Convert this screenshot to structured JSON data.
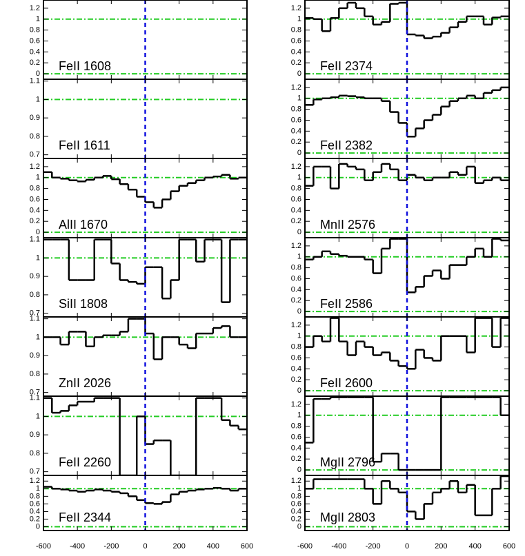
{
  "chart_data": [
    {
      "type": "step",
      "label": "FeII 1608",
      "xlim": [
        -600,
        600
      ],
      "xticks": [
        -600,
        -400,
        -200,
        0,
        200,
        400,
        600
      ],
      "ylim": [
        -0.1,
        1.35
      ],
      "yticks": [
        0.0,
        0.2,
        0.4,
        0.6,
        0.8,
        1.0,
        1.2
      ],
      "hlines": [
        0,
        1
      ],
      "vline": 0
    },
    {
      "type": "step",
      "label": "FeII 1611",
      "xlim": [
        -600,
        600
      ],
      "xticks": [
        -600,
        -400,
        -200,
        0,
        200,
        400,
        600
      ],
      "ylim": [
        0.68,
        1.11
      ],
      "yticks": [
        0.7,
        0.8,
        0.9,
        1.0,
        1.1
      ],
      "hlines": [
        1
      ],
      "vline": 0
    },
    {
      "type": "step",
      "label": "AlII 1670",
      "xlim": [
        -600,
        600
      ],
      "xticks": [
        -600,
        -400,
        -200,
        0,
        200,
        400,
        600
      ],
      "ylim": [
        -0.1,
        1.35
      ],
      "yticks": [
        0.0,
        0.2,
        0.4,
        0.6,
        0.8,
        1.0,
        1.2
      ],
      "hlines": [
        0,
        1
      ],
      "vline": 0,
      "x": [
        -575,
        -525,
        -475,
        -425,
        -375,
        -325,
        -275,
        -225,
        -175,
        -125,
        -75,
        -25,
        25,
        75,
        125,
        175,
        225,
        275,
        325,
        375,
        425,
        475,
        525,
        575
      ],
      "values": [
        1.1,
        1.0,
        0.98,
        0.95,
        0.93,
        0.96,
        1.0,
        1.03,
        0.97,
        0.88,
        0.78,
        0.65,
        0.55,
        0.45,
        0.6,
        0.75,
        0.85,
        0.9,
        0.95,
        1.0,
        1.02,
        1.05,
        0.98,
        1.0
      ]
    },
    {
      "type": "step",
      "label": "SiII 1808",
      "xlim": [
        -600,
        600
      ],
      "xticks": [
        -600,
        -400,
        -200,
        0,
        200,
        400,
        600
      ],
      "ylim": [
        0.68,
        1.11
      ],
      "yticks": [
        0.7,
        0.8,
        0.9,
        1.0,
        1.1
      ],
      "hlines": [
        1
      ],
      "vline": 0,
      "x": [
        -575,
        -525,
        -475,
        -425,
        -375,
        -325,
        -275,
        -225,
        -175,
        -125,
        -75,
        -25,
        25,
        75,
        125,
        175,
        225,
        275,
        325,
        375,
        425,
        475,
        525,
        575
      ],
      "values": [
        1.1,
        1.1,
        1.1,
        0.88,
        0.88,
        0.88,
        1.1,
        1.1,
        0.97,
        0.88,
        0.87,
        0.86,
        0.95,
        0.95,
        0.78,
        0.88,
        1.1,
        1.1,
        0.98,
        1.1,
        1.1,
        0.76,
        1.1,
        1.1
      ]
    },
    {
      "type": "step",
      "label": "ZnII 2026",
      "xlim": [
        -600,
        600
      ],
      "xticks": [
        -600,
        -400,
        -200,
        0,
        200,
        400,
        600
      ],
      "ylim": [
        0.68,
        1.11
      ],
      "yticks": [
        0.7,
        0.8,
        0.9,
        1.0,
        1.1
      ],
      "hlines": [
        1
      ],
      "vline": 0,
      "x": [
        -575,
        -525,
        -475,
        -425,
        -375,
        -325,
        -275,
        -225,
        -175,
        -125,
        -75,
        -25,
        25,
        75,
        125,
        175,
        225,
        275,
        325,
        375,
        425,
        475,
        525,
        575
      ],
      "values": [
        1.0,
        1.0,
        0.96,
        1.03,
        1.03,
        0.95,
        1.0,
        1.01,
        1.01,
        1.03,
        1.1,
        1.1,
        1.02,
        0.88,
        1.0,
        1.0,
        0.96,
        0.94,
        1.02,
        1.02,
        1.05,
        1.06,
        1.0,
        1.0
      ]
    },
    {
      "type": "step",
      "label": "FeII 2260",
      "xlim": [
        -600,
        600
      ],
      "xticks": [
        -600,
        -400,
        -200,
        0,
        200,
        400,
        600
      ],
      "ylim": [
        0.68,
        1.11
      ],
      "yticks": [
        0.7,
        0.8,
        0.9,
        1.0,
        1.1
      ],
      "hlines": [
        1
      ],
      "vline": 0,
      "x": [
        -575,
        -525,
        -475,
        -425,
        -375,
        -325,
        -275,
        -225,
        -175,
        -125,
        -75,
        -25,
        25,
        75,
        125,
        175,
        225,
        275,
        325,
        375,
        425,
        475,
        525,
        575
      ],
      "values": [
        1.1,
        1.02,
        1.03,
        1.06,
        1.08,
        1.08,
        1.1,
        1.1,
        1.1,
        0.68,
        0.68,
        1.0,
        0.85,
        0.87,
        0.87,
        0.68,
        0.68,
        0.68,
        1.1,
        1.1,
        1.1,
        0.98,
        0.95,
        0.93
      ]
    },
    {
      "type": "step",
      "label": "FeII 2344",
      "xlim": [
        -600,
        600
      ],
      "xticks": [
        -600,
        -400,
        -200,
        0,
        200,
        400,
        600
      ],
      "ylim": [
        -0.1,
        1.35
      ],
      "yticks": [
        0.0,
        0.2,
        0.4,
        0.6,
        0.8,
        1.0,
        1.2
      ],
      "hlines": [
        0,
        1
      ],
      "vline": 0,
      "x": [
        -575,
        -525,
        -475,
        -425,
        -375,
        -325,
        -275,
        -225,
        -175,
        -125,
        -75,
        -25,
        25,
        75,
        125,
        175,
        225,
        275,
        325,
        375,
        425,
        475,
        525,
        575
      ],
      "values": [
        1.05,
        1.0,
        0.98,
        0.95,
        0.92,
        0.95,
        0.98,
        0.95,
        0.92,
        0.88,
        0.8,
        0.7,
        0.62,
        0.6,
        0.65,
        0.85,
        0.92,
        0.95,
        0.98,
        1.0,
        1.02,
        1.0,
        0.95,
        1.0
      ]
    },
    {
      "type": "step",
      "label": "FeII 2374",
      "xlim": [
        -600,
        600
      ],
      "xticks": [
        -600,
        -400,
        -200,
        0,
        200,
        400,
        600
      ],
      "ylim": [
        -0.1,
        1.35
      ],
      "yticks": [
        0.0,
        0.2,
        0.4,
        0.6,
        0.8,
        1.0,
        1.2
      ],
      "hlines": [
        0,
        1
      ],
      "vline": 0,
      "x": [
        -575,
        -525,
        -475,
        -425,
        -375,
        -325,
        -275,
        -225,
        -175,
        -125,
        -75,
        -25,
        25,
        75,
        125,
        175,
        225,
        275,
        325,
        375,
        425,
        475,
        525,
        575
      ],
      "values": [
        1.02,
        1.0,
        0.78,
        1.02,
        1.2,
        1.3,
        1.2,
        1.05,
        0.9,
        0.95,
        1.28,
        1.3,
        0.72,
        0.7,
        0.65,
        0.68,
        0.75,
        0.85,
        0.95,
        1.05,
        1.05,
        0.9,
        1.03,
        1.05
      ]
    },
    {
      "type": "step",
      "label": "FeII 2382",
      "xlim": [
        -600,
        600
      ],
      "xticks": [
        -600,
        -400,
        -200,
        0,
        200,
        400,
        600
      ],
      "ylim": [
        -0.1,
        1.35
      ],
      "yticks": [
        0.0,
        0.2,
        0.4,
        0.6,
        0.8,
        1.0,
        1.2
      ],
      "hlines": [
        0,
        1
      ],
      "vline": 0,
      "x": [
        -575,
        -525,
        -475,
        -425,
        -375,
        -325,
        -275,
        -225,
        -175,
        -125,
        -75,
        -25,
        25,
        75,
        125,
        175,
        225,
        275,
        325,
        375,
        425,
        475,
        525,
        575
      ],
      "values": [
        0.88,
        0.98,
        1.0,
        1.02,
        1.05,
        1.04,
        1.02,
        1.0,
        1.0,
        0.95,
        0.75,
        0.55,
        0.3,
        0.45,
        0.6,
        0.7,
        0.85,
        0.95,
        1.0,
        1.05,
        1.0,
        1.1,
        1.15,
        1.2
      ]
    },
    {
      "type": "step",
      "label": "MnII 2576",
      "xlim": [
        -600,
        600
      ],
      "xticks": [
        -600,
        -400,
        -200,
        0,
        200,
        400,
        600
      ],
      "ylim": [
        -0.1,
        1.35
      ],
      "yticks": [
        0.0,
        0.2,
        0.4,
        0.6,
        0.8,
        1.0,
        1.2
      ],
      "hlines": [
        0,
        1
      ],
      "vline": 0,
      "x": [
        -575,
        -525,
        -475,
        -425,
        -375,
        -325,
        -275,
        -225,
        -175,
        -125,
        -75,
        -25,
        25,
        75,
        125,
        175,
        225,
        275,
        325,
        375,
        425,
        475,
        525,
        575
      ],
      "values": [
        0.85,
        1.2,
        1.2,
        0.8,
        1.25,
        1.2,
        1.15,
        0.95,
        1.1,
        1.25,
        1.15,
        0.95,
        1.05,
        1.0,
        0.95,
        1.0,
        1.0,
        1.1,
        1.05,
        1.2,
        0.9,
        0.95,
        1.0,
        0.95
      ]
    },
    {
      "type": "step",
      "label": "FeII 2586",
      "xlim": [
        -600,
        600
      ],
      "xticks": [
        -600,
        -400,
        -200,
        0,
        200,
        400,
        600
      ],
      "ylim": [
        -0.1,
        1.35
      ],
      "yticks": [
        0.0,
        0.2,
        0.4,
        0.6,
        0.8,
        1.0,
        1.2
      ],
      "hlines": [
        0,
        1
      ],
      "vline": 0,
      "x": [
        -575,
        -525,
        -475,
        -425,
        -375,
        -325,
        -275,
        -225,
        -175,
        -125,
        -75,
        -25,
        25,
        75,
        125,
        175,
        225,
        275,
        325,
        375,
        425,
        475,
        525,
        575
      ],
      "values": [
        0.95,
        1.0,
        1.1,
        1.05,
        1.02,
        1.0,
        1.0,
        0.95,
        0.7,
        1.15,
        1.33,
        1.33,
        0.35,
        0.45,
        0.65,
        0.75,
        0.6,
        0.85,
        0.85,
        1.0,
        1.15,
        1.0,
        1.33,
        1.3
      ]
    },
    {
      "type": "step",
      "label": "FeII 2600",
      "xlim": [
        -600,
        600
      ],
      "xticks": [
        -600,
        -400,
        -200,
        0,
        200,
        400,
        600
      ],
      "ylim": [
        -0.1,
        1.35
      ],
      "yticks": [
        0.0,
        0.2,
        0.4,
        0.6,
        0.8,
        1.0,
        1.2
      ],
      "hlines": [
        0,
        1
      ],
      "vline": 0,
      "x": [
        -575,
        -525,
        -475,
        -425,
        -375,
        -325,
        -275,
        -225,
        -175,
        -125,
        -75,
        -25,
        25,
        75,
        125,
        175,
        225,
        275,
        325,
        375,
        425,
        475,
        525,
        575
      ],
      "values": [
        0.8,
        1.0,
        0.9,
        1.33,
        0.9,
        0.65,
        0.9,
        0.8,
        0.65,
        0.7,
        0.55,
        0.45,
        0.4,
        0.75,
        0.6,
        0.55,
        1.0,
        1.0,
        1.0,
        0.7,
        1.33,
        1.33,
        0.8,
        1.33
      ]
    },
    {
      "type": "step",
      "label": "MgII 2796",
      "xlim": [
        -600,
        600
      ],
      "xticks": [
        -600,
        -400,
        -200,
        0,
        200,
        400,
        600
      ],
      "ylim": [
        -0.1,
        1.35
      ],
      "yticks": [
        0.0,
        0.2,
        0.4,
        0.6,
        0.8,
        1.0,
        1.2
      ],
      "hlines": [
        0,
        1
      ],
      "vline": 0,
      "x": [
        -575,
        -525,
        -475,
        -425,
        -375,
        -325,
        -275,
        -225,
        -175,
        -125,
        -75,
        -25,
        25,
        75,
        125,
        175,
        225,
        275,
        325,
        375,
        425,
        475,
        525,
        575
      ],
      "values": [
        0.5,
        1.3,
        1.3,
        1.33,
        1.33,
        1.33,
        1.33,
        1.33,
        0.15,
        0.3,
        0.3,
        0.0,
        0.0,
        0.0,
        0.0,
        0.0,
        1.33,
        1.33,
        1.33,
        1.33,
        1.33,
        1.33,
        1.33,
        1.0
      ]
    },
    {
      "type": "step",
      "label": "MgII 2803",
      "xlim": [
        -600,
        600
      ],
      "xticks": [
        -600,
        -400,
        -200,
        0,
        200,
        400,
        600
      ],
      "ylim": [
        -0.1,
        1.35
      ],
      "yticks": [
        0.0,
        0.2,
        0.4,
        0.6,
        0.8,
        1.0,
        1.2
      ],
      "hlines": [
        0,
        1
      ],
      "vline": 0,
      "x": [
        -575,
        -525,
        -475,
        -425,
        -375,
        -325,
        -275,
        -225,
        -175,
        -125,
        -75,
        -25,
        25,
        75,
        125,
        175,
        225,
        275,
        325,
        375,
        425,
        475,
        525,
        575
      ],
      "values": [
        1.0,
        1.25,
        1.25,
        1.25,
        1.25,
        1.25,
        1.25,
        1.0,
        0.6,
        1.2,
        1.0,
        0.9,
        0.4,
        0.2,
        0.6,
        0.9,
        1.0,
        1.2,
        0.9,
        1.1,
        0.3,
        0.3,
        1.0,
        1.33
      ]
    }
  ]
}
